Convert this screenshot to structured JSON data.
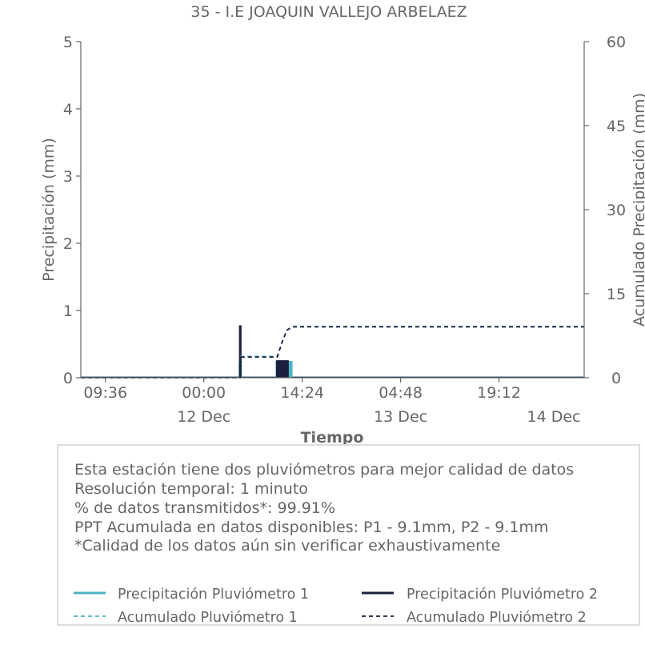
{
  "colors": {
    "p1": "#4fb3c4",
    "p2": "#1a1f3f",
    "text": "#666666",
    "axis": "#666666",
    "legend_border": "#dddddd"
  },
  "chart_data": {
    "type": "line",
    "title": "35 - I.E JOAQUIN VALLEJO ARBELAEZ",
    "xlabel": "Tiempo",
    "ylabel": "Precipitación (mm)",
    "y2label": "Acumulado Precipitación (mm)",
    "x_range": [
      "2023-12-11T06:00",
      "2023-12-14T07:40"
    ],
    "ylim": [
      0,
      5
    ],
    "y2lim": [
      0,
      60
    ],
    "y_ticks": [
      0,
      1,
      2,
      3,
      4,
      5
    ],
    "y2_ticks": [
      0,
      15,
      30,
      45,
      60
    ],
    "x_ticks": [
      {
        "t": "2023-12-11T09:36",
        "label": "09:36",
        "sub": ""
      },
      {
        "t": "2023-12-12T00:00",
        "label": "00:00",
        "sub": "12 Dec"
      },
      {
        "t": "2023-12-12T14:24",
        "label": "14:24",
        "sub": ""
      },
      {
        "t": "2023-12-13T04:48",
        "label": "04:48",
        "sub": "13 Dec"
      },
      {
        "t": "2023-12-13T19:12",
        "label": "19:12",
        "sub": ""
      },
      {
        "t": "2023-12-14T09:36",
        "label": "",
        "sub": "14 Dec"
      }
    ],
    "grid": false,
    "series": [
      {
        "name": "Precipitación Pluviómetro 1",
        "axis": "left",
        "style": "bars",
        "color": "#4fb3c4",
        "points": [
          {
            "t": "2023-12-12T05:20",
            "v": 0.25
          },
          {
            "t": "2023-12-12T10:45",
            "v": 0.25
          },
          {
            "t": "2023-12-12T11:00",
            "v": 0.25
          },
          {
            "t": "2023-12-12T11:15",
            "v": 0.25
          },
          {
            "t": "2023-12-12T11:30",
            "v": 0.25
          },
          {
            "t": "2023-12-12T11:45",
            "v": 0.25
          },
          {
            "t": "2023-12-12T12:00",
            "v": 0.25
          },
          {
            "t": "2023-12-12T12:15",
            "v": 0.25
          },
          {
            "t": "2023-12-12T12:30",
            "v": 0.25
          },
          {
            "t": "2023-12-12T12:45",
            "v": 0.25
          }
        ]
      },
      {
        "name": "Precipitación Pluviómetro 2",
        "axis": "left",
        "style": "bars",
        "color": "#1a1f3f",
        "points": [
          {
            "t": "2023-12-12T05:20",
            "v": 0.78
          },
          {
            "t": "2023-12-12T10:45",
            "v": 0.26
          },
          {
            "t": "2023-12-12T11:00",
            "v": 0.26
          },
          {
            "t": "2023-12-12T11:15",
            "v": 0.26
          },
          {
            "t": "2023-12-12T11:30",
            "v": 0.26
          },
          {
            "t": "2023-12-12T11:45",
            "v": 0.26
          },
          {
            "t": "2023-12-12T12:00",
            "v": 0.26
          },
          {
            "t": "2023-12-12T12:15",
            "v": 0.26
          }
        ]
      },
      {
        "name": "Acumulado Pluviómetro 1",
        "axis": "right",
        "style": "dashed",
        "color": "#4fb3c4",
        "points": [
          {
            "t": "2023-12-11T06:00",
            "v": 0
          },
          {
            "t": "2023-12-12T05:20",
            "v": 0
          },
          {
            "t": "2023-12-12T05:25",
            "v": 3.8
          },
          {
            "t": "2023-12-12T10:45",
            "v": 3.8
          },
          {
            "t": "2023-12-12T11:30",
            "v": 6.5
          },
          {
            "t": "2023-12-12T12:10",
            "v": 8.5
          },
          {
            "t": "2023-12-12T13:00",
            "v": 9.1
          },
          {
            "t": "2023-12-14T07:40",
            "v": 9.1
          }
        ]
      },
      {
        "name": "Acumulado Pluviómetro 2",
        "axis": "right",
        "style": "dashed",
        "color": "#1a1f3f",
        "points": [
          {
            "t": "2023-12-11T06:00",
            "v": 0
          },
          {
            "t": "2023-12-12T05:20",
            "v": 0
          },
          {
            "t": "2023-12-12T05:25",
            "v": 3.7
          },
          {
            "t": "2023-12-12T10:45",
            "v": 3.7
          },
          {
            "t": "2023-12-12T11:30",
            "v": 6.5
          },
          {
            "t": "2023-12-12T12:10",
            "v": 8.5
          },
          {
            "t": "2023-12-12T13:00",
            "v": 9.1
          },
          {
            "t": "2023-12-14T07:40",
            "v": 9.1
          }
        ]
      }
    ]
  },
  "info": {
    "line1": "Esta estación tiene dos pluviómetros para mejor calidad de datos",
    "line2": "Resolución temporal: 1 minuto",
    "line3": "% de datos transmitidos*: 99.91%",
    "line4": "PPT Acumulada en datos disponibles: P1 - 9.1mm, P2 - 9.1mm",
    "line5": "*Calidad de los datos aún sin verificar exhaustivamente"
  },
  "legend": {
    "p1_precip": "Precipitación Pluviómetro 1",
    "p2_precip": "Precipitación Pluviómetro 2",
    "p1_acum": "Acumulado Pluviómetro 1",
    "p2_acum": "Acumulado Pluviómetro 2"
  }
}
